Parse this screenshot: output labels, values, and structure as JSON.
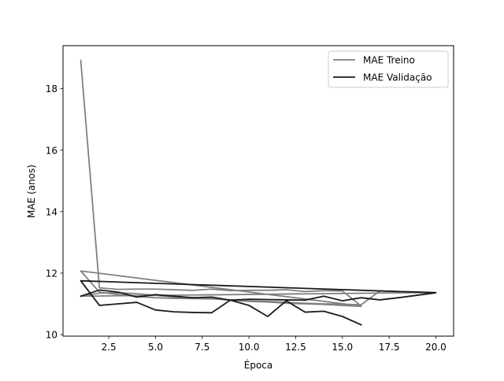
{
  "chart_data": {
    "type": "line",
    "title": "",
    "xlabel": "Época",
    "ylabel": "MAE (anos)",
    "xlim": [
      0.05,
      20.95
    ],
    "ylim": [
      9.95,
      19.4
    ],
    "xticks": [
      2.5,
      5.0,
      7.5,
      10.0,
      12.5,
      15.0,
      17.5,
      20.0
    ],
    "xtick_labels": [
      "2.5",
      "5.0",
      "7.5",
      "10.0",
      "12.5",
      "15.0",
      "17.5",
      "20.0"
    ],
    "yticks": [
      10,
      12,
      14,
      16,
      18
    ],
    "ytick_labels": [
      "10",
      "12",
      "14",
      "16",
      "18"
    ],
    "grid": false,
    "legend_position": "top-right",
    "series": [
      {
        "name": "MAE Treino",
        "color": "#808080",
        "x": [
          1,
          2,
          3,
          4,
          5,
          6,
          7,
          8,
          9,
          10,
          11,
          12,
          13,
          14,
          15,
          16,
          1,
          2,
          3,
          4,
          5,
          6,
          7,
          8,
          9,
          10,
          11,
          12,
          13,
          14,
          15,
          16,
          17,
          18,
          19,
          20,
          1,
          2,
          3,
          4,
          5,
          6,
          7,
          8,
          9,
          10,
          11,
          12,
          13,
          14,
          15,
          16
        ],
        "y": [
          18.92,
          11.52,
          11.47,
          11.48,
          11.48,
          11.46,
          11.44,
          11.48,
          11.43,
          11.44,
          11.44,
          11.46,
          11.4,
          11.43,
          11.42,
          10.93,
          12.07,
          11.38,
          11.3,
          11.24,
          11.2,
          11.18,
          11.17,
          11.16,
          11.13,
          11.1,
          11.08,
          11.05,
          11.02,
          11.0,
          10.99,
          10.97,
          11.42,
          11.4,
          11.39,
          11.37,
          11.25,
          11.35,
          11.36,
          11.33,
          11.28,
          11.22,
          11.2,
          11.17,
          11.12,
          11.08,
          11.06,
          11.02,
          11.0,
          10.98,
          10.95,
          10.92
        ]
      },
      {
        "name": "MAE Validação",
        "color": "#1a1a1a",
        "x": [
          1,
          2,
          3,
          4,
          5,
          6,
          7,
          8,
          9,
          10,
          11,
          12,
          13,
          14,
          15,
          16,
          17,
          18,
          19,
          20,
          1,
          2,
          3,
          4,
          5,
          6,
          7,
          8,
          9,
          10,
          11,
          12,
          13,
          14,
          15,
          16
        ],
        "y": [
          11.25,
          11.45,
          11.38,
          11.22,
          11.3,
          11.25,
          11.2,
          11.22,
          11.12,
          11.15,
          11.14,
          11.13,
          11.12,
          11.25,
          11.1,
          11.2,
          11.13,
          11.2,
          11.28,
          11.36,
          11.75,
          10.95,
          11.0,
          11.05,
          10.8,
          10.74,
          10.72,
          10.71,
          11.12,
          10.95,
          10.59,
          11.1,
          10.73,
          10.76,
          10.59,
          10.32
        ]
      }
    ]
  }
}
